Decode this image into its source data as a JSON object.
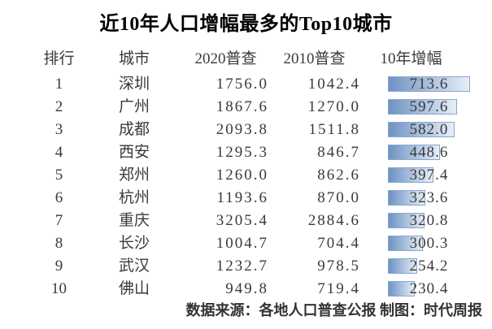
{
  "title": "近10年人口增幅最多的Top10城市",
  "table": {
    "headers": [
      "排行",
      "城市",
      "2020普查",
      "2010普查",
      "10年增幅"
    ],
    "rows": [
      {
        "rank": "1",
        "city": "深圳",
        "census2020": "1756.0",
        "census2010": "1042.4",
        "growth": "713.6"
      },
      {
        "rank": "2",
        "city": "广州",
        "census2020": "1867.6",
        "census2010": "1270.0",
        "growth": "597.6"
      },
      {
        "rank": "3",
        "city": "成都",
        "census2020": "2093.8",
        "census2010": "1511.8",
        "growth": "582.0"
      },
      {
        "rank": "4",
        "city": "西安",
        "census2020": "1295.3",
        "census2010": "846.7",
        "growth": "448.6"
      },
      {
        "rank": "5",
        "city": "郑州",
        "census2020": "1260.0",
        "census2010": "862.6",
        "growth": "397.4"
      },
      {
        "rank": "6",
        "city": "杭州",
        "census2020": "1193.6",
        "census2010": "870.0",
        "growth": "323.6"
      },
      {
        "rank": "7",
        "city": "重庆",
        "census2020": "3205.4",
        "census2010": "2884.6",
        "growth": "320.8"
      },
      {
        "rank": "8",
        "city": "长沙",
        "census2020": "1004.7",
        "census2010": "704.4",
        "growth": "300.3"
      },
      {
        "rank": "9",
        "city": "武汉",
        "census2020": "1232.7",
        "census2010": "978.5",
        "growth": "254.2"
      },
      {
        "rank": "10",
        "city": "佛山",
        "census2020": "949.8",
        "census2010": "719.4",
        "growth": "230.4"
      }
    ]
  },
  "footer": "数据来源：各地人口普查公报 制图：时代周报",
  "colors": {
    "bar_gradient_start": "#6e92c3",
    "bar_gradient_end": "#e7eef7",
    "bar_border": "#8aa6cf",
    "body_text": "#3a3a3a",
    "title_text": "#000000"
  },
  "chart_data": {
    "type": "table",
    "title": "近10年人口增幅最多的Top10城市",
    "columns": [
      "排行",
      "城市",
      "2020普查",
      "2010普查",
      "10年增幅"
    ],
    "rows": [
      [
        1,
        "深圳",
        1756.0,
        1042.4,
        713.6
      ],
      [
        2,
        "广州",
        1867.6,
        1270.0,
        597.6
      ],
      [
        3,
        "成都",
        2093.8,
        1511.8,
        582.0
      ],
      [
        4,
        "西安",
        1295.3,
        846.7,
        448.6
      ],
      [
        5,
        "郑州",
        1260.0,
        862.6,
        397.4
      ],
      [
        6,
        "杭州",
        1193.6,
        870.0,
        323.6
      ],
      [
        7,
        "重庆",
        3205.4,
        2884.6,
        320.8
      ],
      [
        8,
        "长沙",
        1004.7,
        704.4,
        300.3
      ],
      [
        9,
        "武汉",
        1232.7,
        978.5,
        254.2
      ],
      [
        10,
        "佛山",
        949.8,
        719.4,
        230.4
      ]
    ],
    "bar_column": "10年增幅",
    "bar_style": "gradient-data-bar",
    "bar_scale_max": 713.6,
    "note": "数据来源：各地人口普查公报 制图：时代周报"
  }
}
